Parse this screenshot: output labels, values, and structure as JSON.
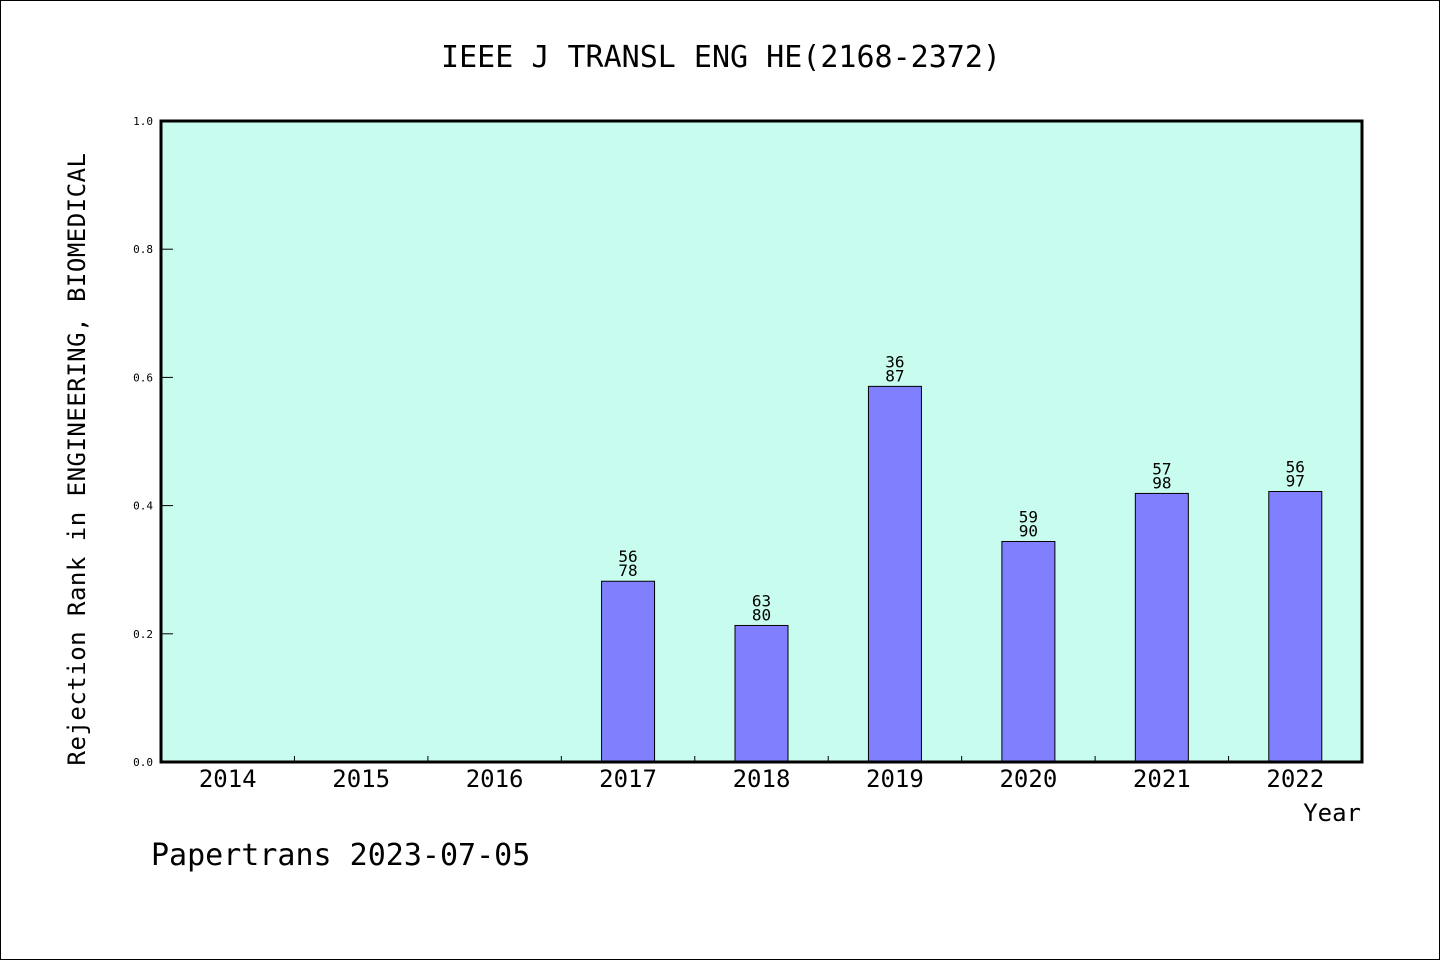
{
  "chart_data": {
    "type": "bar",
    "title": "IEEE J TRANSL ENG HE(2168-2372)",
    "xlabel": "Year",
    "ylabel": "Rejection Rank in ENGINEERING, BIOMEDICAL",
    "ylim": [
      0.0,
      1.0
    ],
    "yticks": [
      "0.0",
      "0.2",
      "0.4",
      "0.6",
      "0.8",
      "1.0"
    ],
    "categories": [
      "2014",
      "2015",
      "2016",
      "2017",
      "2018",
      "2019",
      "2020",
      "2021",
      "2022"
    ],
    "values": [
      null,
      null,
      null,
      0.282,
      0.213,
      0.586,
      0.344,
      0.419,
      0.422
    ],
    "bar_labels": [
      null,
      null,
      null,
      [
        "56",
        "78"
      ],
      [
        "63",
        "80"
      ],
      [
        "36",
        "87"
      ],
      [
        "59",
        "90"
      ],
      [
        "57",
        "98"
      ],
      [
        "56",
        "97"
      ]
    ],
    "plot_background": "#c8fcee",
    "bar_color": "#8080ff",
    "grid": false,
    "legend": "none"
  },
  "footer": {
    "text": "Papertrans 2023-07-05"
  }
}
